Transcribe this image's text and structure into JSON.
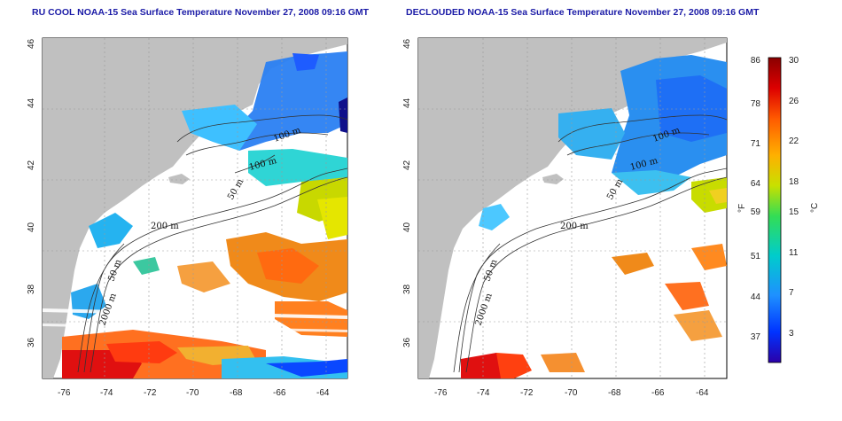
{
  "panels": [
    {
      "title": "RU COOL NOAA-15 Sea Surface Temperature November 27, 2008 09:16 GMT",
      "type": "cloudy"
    },
    {
      "title": "DECLOUDED NOAA-15 Sea Surface Temperature November 27, 2008 09:16 GMT",
      "type": "declouded"
    }
  ],
  "axes": {
    "lat_ticks": [
      "36",
      "38",
      "40",
      "42",
      "44",
      "46"
    ],
    "lon_ticks": [
      "-76",
      "-74",
      "-72",
      "-70",
      "-68",
      "-66",
      "-64"
    ]
  },
  "contour_labels": [
    "200 m",
    "50 m",
    "100 m",
    "100 m",
    "50 m",
    "2000 m"
  ],
  "colorbar": {
    "left_unit": "°F",
    "right_unit": "°C",
    "f_labels": [
      "86",
      "78",
      "71",
      "64",
      "59",
      "51",
      "44",
      "37"
    ],
    "c_labels": [
      "30",
      "26",
      "22",
      "18",
      "15",
      "11",
      "7",
      "3"
    ],
    "colors": [
      "#2b00a8",
      "#0033ff",
      "#1e90ff",
      "#00cccc",
      "#33dd55",
      "#c8e000",
      "#ffb000",
      "#ff5a00",
      "#dd0000",
      "#8a0000"
    ]
  },
  "colors": {
    "land": "#c0c0c0",
    "ocean_nodata": "#ffffff",
    "title": "#1a1aa6"
  }
}
